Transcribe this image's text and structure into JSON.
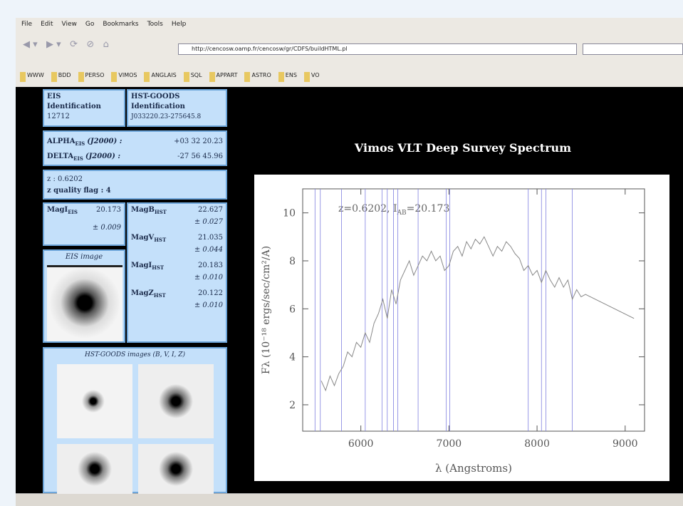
{
  "menu": [
    "File",
    "Edit",
    "View",
    "Go",
    "Bookmarks",
    "Tools",
    "Help"
  ],
  "url": "http://cencosw.oamp.fr/cencosw/gr/CDFS/buildHTML.pl",
  "bookmarks": [
    "WWW",
    "BDD",
    "PERSO",
    "VIMOS",
    "ANGLAIS",
    "SQL",
    "APPART",
    "ASTRO",
    "ENS",
    "VO"
  ],
  "ident": [
    {
      "title": "EIS",
      "subtitle": "Identification",
      "value": "12712"
    },
    {
      "title": "HST-GOODS",
      "subtitle": "Identification",
      "value": "J033220.23-275645.8"
    }
  ],
  "coords": [
    {
      "name": "ALPHA",
      "sub": "EIS",
      "epoch": "(J2000) :",
      "value": "+03 32 20.23"
    },
    {
      "name": "DELTA",
      "sub": "EIS",
      "epoch": "(J2000) :",
      "value": "-27 56 45.96"
    }
  ],
  "redshift": [
    "z : 0.6202",
    "z quality flag : 4"
  ],
  "mag_eis": {
    "name": "MagI",
    "sub": "EIS",
    "value": "20.173",
    "error": "± 0.009"
  },
  "mag_hst": [
    {
      "name": "MagB",
      "sub": "HST",
      "value": "22.627",
      "error": "± 0.027"
    },
    {
      "name": "MagV",
      "sub": "HST",
      "value": "21.035",
      "error": "± 0.044"
    },
    {
      "name": "MagI",
      "sub": "HST",
      "value": "20.183",
      "error": "± 0.010"
    },
    {
      "name": "MagZ",
      "sub": "HST",
      "value": "20.122",
      "error": "± 0.010"
    }
  ],
  "eis_image": {
    "caption": "EIS image"
  },
  "hst_images": {
    "caption": "HST-GOODS images (B, V, I, Z)"
  },
  "chart_data": {
    "type": "line",
    "title": "Vimos VLT Deep Survey Spectrum",
    "annotation": [
      "z=0.6202, I",
      "AB",
      "=20.173"
    ],
    "x_label": "λ (Angstroms)",
    "y_label": "Fλ (10⁻¹⁸ ergs/sec/cm²/A)",
    "xlim": [
      5340,
      9220
    ],
    "ylim": [
      0.9,
      11
    ],
    "xticks": [
      6000,
      7000,
      8000,
      9000
    ],
    "yticks": [
      2,
      4,
      6,
      8,
      10
    ],
    "line_positions": [
      5480,
      5540,
      5780,
      6050,
      6240,
      6300,
      6370,
      6420,
      6650,
      6970,
      7010,
      7900,
      8050,
      8100,
      8400
    ],
    "line_color": "#8080e0",
    "x": [
      5550,
      5600,
      5650,
      5700,
      5750,
      5800,
      5850,
      5900,
      5950,
      6000,
      6050,
      6100,
      6150,
      6200,
      6250,
      6300,
      6350,
      6400,
      6450,
      6500,
      6550,
      6600,
      6650,
      6700,
      6750,
      6800,
      6850,
      6900,
      6950,
      7000,
      7050,
      7100,
      7150,
      7200,
      7250,
      7300,
      7350,
      7400,
      7450,
      7500,
      7550,
      7600,
      7650,
      7700,
      7750,
      7800,
      7850,
      7900,
      7950,
      8000,
      8050,
      8100,
      8150,
      8200,
      8250,
      8300,
      8350,
      8400,
      8450,
      8500,
      8550,
      9100
    ],
    "series": [
      {
        "color": "#888888",
        "values": [
          3.0,
          2.6,
          3.2,
          2.8,
          3.3,
          3.6,
          4.2,
          4.0,
          4.6,
          4.4,
          5.0,
          4.6,
          5.4,
          5.8,
          6.4,
          5.6,
          6.8,
          6.2,
          7.2,
          7.6,
          8.0,
          7.4,
          7.8,
          8.2,
          8.0,
          8.4,
          8.0,
          8.2,
          7.6,
          7.8,
          8.4,
          8.6,
          8.2,
          8.8,
          8.5,
          8.9,
          8.7,
          9.0,
          8.6,
          8.2,
          8.6,
          8.4,
          8.8,
          8.6,
          8.3,
          8.1,
          7.6,
          7.8,
          7.4,
          7.6,
          7.1,
          7.6,
          7.2,
          6.9,
          7.3,
          6.9,
          7.2,
          6.4,
          6.8,
          6.5,
          6.6,
          5.6
        ]
      }
    ]
  }
}
